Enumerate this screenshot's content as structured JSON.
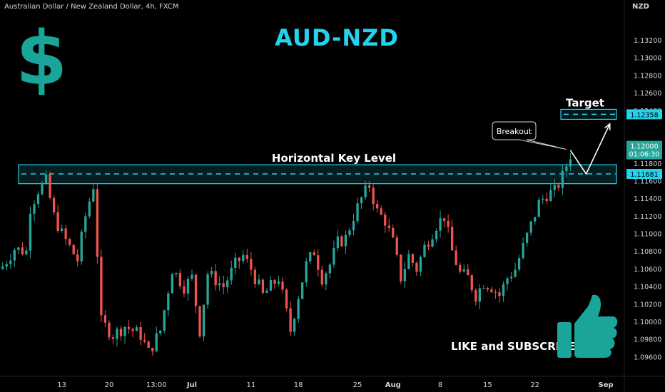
{
  "header": {
    "symbol_title": "Australian Dollar / New Zealand Dollar, 4h, FXCM",
    "currency": "NZD"
  },
  "overlay": {
    "title": "AUD-NZD",
    "dollar_icon": "$",
    "call_to_action": "LIKE and SUBSCRIBE",
    "thumbs_up_icon": "thumbs-up-icon"
  },
  "colors": {
    "up": "#26a69a",
    "down": "#ef5350",
    "accent": "#22d3ee",
    "teal_brand": "#1aa59b",
    "price_badge": "#26a69a"
  },
  "chart_data": {
    "type": "candlestick",
    "timeframe": "4h",
    "ylim": [
      1.0955,
      1.1335
    ],
    "y_ticks": [
      {
        "value": 1.132,
        "label": "1.13200"
      },
      {
        "value": 1.13,
        "label": "1.13000"
      },
      {
        "value": 1.128,
        "label": "1.12800"
      },
      {
        "value": 1.126,
        "label": "1.12600"
      },
      {
        "value": 1.124,
        "label": "1.12400"
      },
      {
        "value": 1.118,
        "label": "1.11800"
      },
      {
        "value": 1.116,
        "label": "1.11600"
      },
      {
        "value": 1.114,
        "label": "1.11400"
      },
      {
        "value": 1.112,
        "label": "1.11200"
      },
      {
        "value": 1.11,
        "label": "1.11000"
      },
      {
        "value": 1.108,
        "label": "1.10800"
      },
      {
        "value": 1.106,
        "label": "1.10600"
      },
      {
        "value": 1.104,
        "label": "1.10400"
      },
      {
        "value": 1.102,
        "label": "1.10200"
      },
      {
        "value": 1.1,
        "label": "1.10000"
      },
      {
        "value": 1.098,
        "label": "1.09800"
      },
      {
        "value": 1.096,
        "label": "1.09600"
      }
    ],
    "x_ticks": [
      {
        "index": 15,
        "label": "13"
      },
      {
        "index": 27,
        "label": "20"
      },
      {
        "index": 39,
        "label": "13:00"
      },
      {
        "index": 48,
        "label": "Jul"
      },
      {
        "index": 63,
        "label": "11"
      },
      {
        "index": 75,
        "label": "18"
      },
      {
        "index": 90,
        "label": "25"
      },
      {
        "index": 99,
        "label": "Aug"
      },
      {
        "index": 111,
        "label": "8"
      },
      {
        "index": 123,
        "label": "15"
      },
      {
        "index": 135,
        "label": "22"
      },
      {
        "index": 153,
        "label": "Sep"
      }
    ],
    "price_path": [
      [
        0,
        1.1063
      ],
      [
        3,
        1.1083
      ],
      [
        6,
        1.108
      ],
      [
        7,
        1.113
      ],
      [
        9,
        1.115
      ],
      [
        11,
        1.116
      ],
      [
        13,
        1.112
      ],
      [
        15,
        1.11
      ],
      [
        17,
        1.1085
      ],
      [
        19,
        1.107
      ],
      [
        21,
        1.112
      ],
      [
        23,
        1.1155
      ],
      [
        25,
        1.1
      ],
      [
        28,
        1.0985
      ],
      [
        31,
        1.0995
      ],
      [
        35,
        1.0985
      ],
      [
        37,
        1.0965
      ],
      [
        40,
        1.099
      ],
      [
        43,
        1.106
      ],
      [
        46,
        1.104
      ],
      [
        48,
        1.105
      ],
      [
        50,
        1.099
      ],
      [
        52,
        1.1055
      ],
      [
        56,
        1.104
      ],
      [
        59,
        1.1065
      ],
      [
        61,
        1.1075
      ],
      [
        63,
        1.106
      ],
      [
        66,
        1.103
      ],
      [
        70,
        1.105
      ],
      [
        73,
        1.099
      ],
      [
        75,
        1.103
      ],
      [
        77,
        1.1065
      ],
      [
        79,
        1.108
      ],
      [
        81,
        1.105
      ],
      [
        83,
        1.1065
      ],
      [
        85,
        1.109
      ],
      [
        87,
        1.1095
      ],
      [
        89,
        1.112
      ],
      [
        91,
        1.114
      ],
      [
        93,
        1.1155
      ],
      [
        95,
        1.1125
      ],
      [
        97,
        1.1115
      ],
      [
        99,
        1.109
      ],
      [
        101,
        1.105
      ],
      [
        103,
        1.1075
      ],
      [
        105,
        1.106
      ],
      [
        107,
        1.1085
      ],
      [
        110,
        1.111
      ],
      [
        112,
        1.112
      ],
      [
        114,
        1.108
      ],
      [
        116,
        1.1055
      ],
      [
        118,
        1.105
      ],
      [
        120,
        1.103
      ],
      [
        122,
        1.1045
      ],
      [
        124,
        1.104
      ],
      [
        126,
        1.103
      ],
      [
        128,
        1.105
      ],
      [
        130,
        1.106
      ],
      [
        132,
        1.1085
      ],
      [
        134,
        1.111
      ],
      [
        136,
        1.1135
      ],
      [
        138,
        1.1145
      ],
      [
        140,
        1.1148
      ],
      [
        142,
        1.1165
      ],
      [
        143,
        1.1178
      ],
      [
        144,
        1.119
      ]
    ],
    "key_level": {
      "label": "Horizontal Key Level",
      "value": 1.11681,
      "zone": [
        1.1157,
        1.11785
      ]
    },
    "target": {
      "label": "Target",
      "value": 1.12358
    },
    "breakout_label": "Breakout",
    "current_price": {
      "label": "1.12000",
      "countdown": "01:06:30"
    },
    "key_level_badge": "1.11681",
    "target_badge": "1.12358",
    "projection": [
      [
        144,
        1.1195
      ],
      [
        148,
        1.1168
      ],
      [
        154,
        1.1225
      ]
    ]
  }
}
